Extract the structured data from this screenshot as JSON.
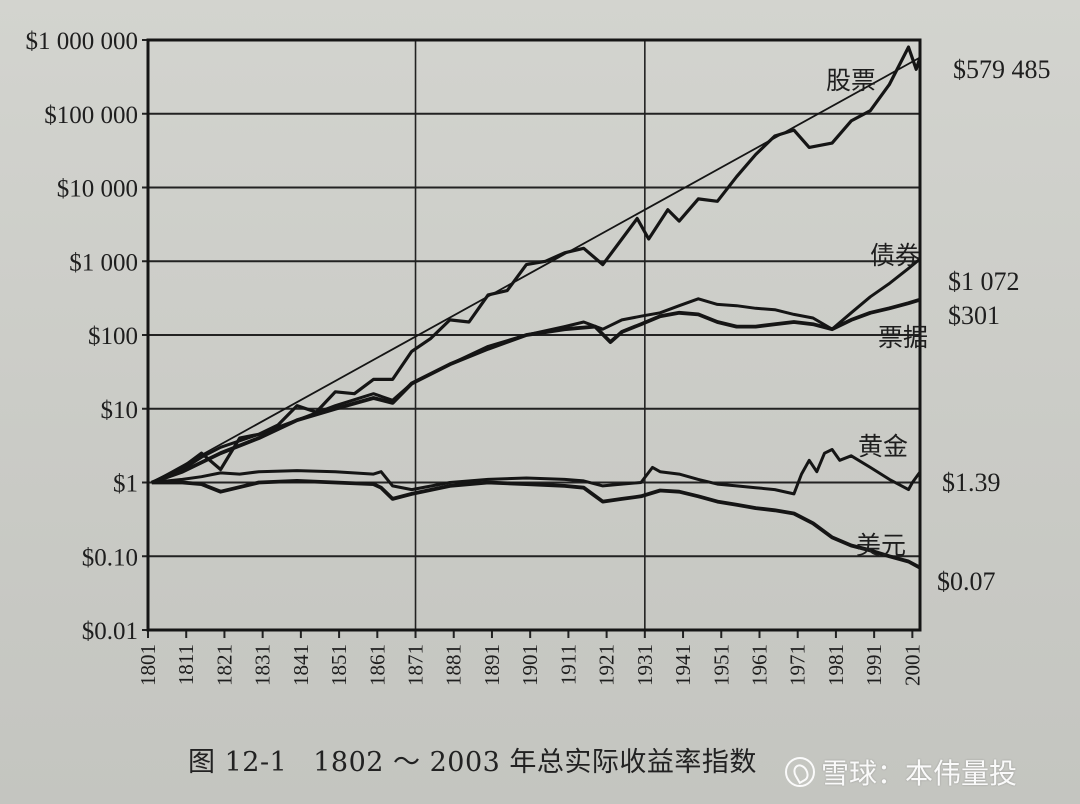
{
  "chart_data": {
    "type": "line",
    "title": "图 12-1 1802 ~ 2003 年总实际收益率指数",
    "figure_number": "图 12-1",
    "caption_text": "1802 ～ 2003 年总实际收益率指数",
    "xlabel": "",
    "ylabel": "",
    "yscale": "log",
    "ylim": [
      0.01,
      1000000
    ],
    "xlim": [
      1801,
      2003
    ],
    "grid": true,
    "y_ticks": [
      "$1 000 000",
      "$100 000",
      "$10 000",
      "$1 000",
      "$100",
      "$10",
      "$1",
      "$0.10",
      "$0.01"
    ],
    "y_tick_values": [
      1000000,
      100000,
      10000,
      1000,
      100,
      10,
      1,
      0.1,
      0.01
    ],
    "x_ticks": [
      "1801",
      "1811",
      "1821",
      "1831",
      "1841",
      "1851",
      "1861",
      "1871",
      "1881",
      "1891",
      "1901",
      "1911",
      "1921",
      "1931",
      "1941",
      "1951",
      "1961",
      "1971",
      "1981",
      "1991",
      "2001"
    ],
    "vertical_gridlines": [
      1871,
      1931
    ],
    "legend_position": "inline labels near line ends",
    "series": [
      {
        "name": "股票",
        "end_label": "$579 485",
        "end_value": 579485,
        "x": [
          1802,
          1810,
          1815,
          1820,
          1825,
          1830,
          1835,
          1840,
          1845,
          1850,
          1855,
          1860,
          1865,
          1870,
          1875,
          1880,
          1885,
          1890,
          1895,
          1900,
          1905,
          1910,
          1915,
          1920,
          1925,
          1929,
          1932,
          1937,
          1940,
          1945,
          1950,
          1955,
          1960,
          1965,
          1970,
          1974,
          1980,
          1985,
          1990,
          1995,
          2000,
          2002,
          2003
        ],
        "values": [
          1,
          1.6,
          2.5,
          1.5,
          4,
          4.5,
          6,
          11,
          9,
          17,
          16,
          25,
          25,
          60,
          90,
          160,
          150,
          350,
          400,
          900,
          1000,
          1300,
          1500,
          900,
          2000,
          3800,
          2000,
          5000,
          3500,
          7000,
          6500,
          14000,
          28000,
          50000,
          60000,
          35000,
          40000,
          80000,
          110000,
          250000,
          800000,
          400000,
          579485
        ]
      },
      {
        "name": "股票趋势线",
        "x": [
          1802,
          2003
        ],
        "values": [
          1,
          579485
        ]
      },
      {
        "name": "债券",
        "end_label": "$1 072",
        "end_value": 1072,
        "x": [
          1802,
          1810,
          1815,
          1820,
          1830,
          1840,
          1850,
          1860,
          1865,
          1870,
          1880,
          1890,
          1900,
          1910,
          1915,
          1920,
          1925,
          1930,
          1935,
          1940,
          1945,
          1950,
          1955,
          1960,
          1965,
          1970,
          1975,
          1980,
          1985,
          1990,
          1995,
          2000,
          2003
        ],
        "values": [
          1,
          1.5,
          2.2,
          3,
          4.5,
          7,
          11,
          16,
          13,
          22,
          40,
          70,
          100,
          130,
          150,
          120,
          160,
          180,
          200,
          250,
          310,
          260,
          250,
          230,
          220,
          190,
          170,
          120,
          200,
          330,
          500,
          800,
          1072
        ]
      },
      {
        "name": "票据",
        "end_label": "$301",
        "end_value": 301,
        "x": [
          1802,
          1810,
          1820,
          1830,
          1840,
          1850,
          1860,
          1865,
          1870,
          1880,
          1890,
          1900,
          1910,
          1918,
          1922,
          1925,
          1930,
          1935,
          1940,
          1945,
          1950,
          1955,
          1960,
          1965,
          1970,
          1975,
          1980,
          1985,
          1990,
          1995,
          2000,
          2003
        ],
        "values": [
          1,
          1.4,
          2.5,
          4,
          7,
          10,
          14,
          12,
          22,
          40,
          65,
          100,
          120,
          130,
          80,
          110,
          140,
          180,
          200,
          190,
          150,
          130,
          130,
          140,
          150,
          140,
          120,
          160,
          200,
          230,
          270,
          301
        ]
      },
      {
        "name": "黄金",
        "end_label": "$1.39",
        "end_value": 1.39,
        "x": [
          1802,
          1810,
          1815,
          1820,
          1825,
          1830,
          1840,
          1850,
          1860,
          1862,
          1865,
          1870,
          1880,
          1890,
          1900,
          1910,
          1915,
          1920,
          1925,
          1930,
          1933,
          1935,
          1940,
          1945,
          1950,
          1955,
          1960,
          1965,
          1970,
          1972,
          1974,
          1976,
          1978,
          1980,
          1982,
          1985,
          1990,
          1995,
          2000,
          2001,
          2003
        ],
        "values": [
          1,
          1.1,
          1.2,
          1.35,
          1.3,
          1.4,
          1.45,
          1.4,
          1.3,
          1.4,
          0.9,
          0.8,
          1.0,
          1.1,
          1.15,
          1.1,
          1.05,
          0.9,
          0.95,
          1.0,
          1.6,
          1.4,
          1.3,
          1.1,
          0.95,
          0.9,
          0.85,
          0.8,
          0.7,
          1.3,
          2.0,
          1.4,
          2.5,
          2.8,
          2.0,
          2.3,
          1.6,
          1.1,
          0.8,
          1.0,
          1.39
        ]
      },
      {
        "name": "美元",
        "end_label": "$0.07",
        "end_value": 0.07,
        "x": [
          1802,
          1810,
          1815,
          1820,
          1830,
          1840,
          1850,
          1860,
          1862,
          1865,
          1870,
          1880,
          1890,
          1900,
          1910,
          1915,
          1920,
          1925,
          1930,
          1935,
          1940,
          1945,
          1950,
          1955,
          1960,
          1965,
          1970,
          1975,
          1980,
          1985,
          1990,
          1995,
          2000,
          2003
        ],
        "values": [
          1,
          1.0,
          0.95,
          0.75,
          1.0,
          1.05,
          1.0,
          0.95,
          0.85,
          0.6,
          0.7,
          0.9,
          1.0,
          0.95,
          0.9,
          0.85,
          0.55,
          0.6,
          0.65,
          0.78,
          0.75,
          0.65,
          0.55,
          0.5,
          0.45,
          0.42,
          0.38,
          0.28,
          0.18,
          0.14,
          0.12,
          0.1,
          0.085,
          0.07
        ]
      }
    ]
  },
  "labels": {
    "series_names": {
      "stocks": "股票",
      "bonds": "债券",
      "bills": "票据",
      "gold": "黄金",
      "dollar": "美元"
    },
    "end_values": {
      "stocks": "$579 485",
      "bonds": "$1 072",
      "bills": "$301",
      "gold": "$1.39",
      "dollar": "$0.07"
    }
  },
  "caption": {
    "figure_number": "图 12-1",
    "text": "1802 ～ 2003 年总实际收益率指数"
  },
  "watermark": {
    "text": "雪球：本伟量投"
  }
}
